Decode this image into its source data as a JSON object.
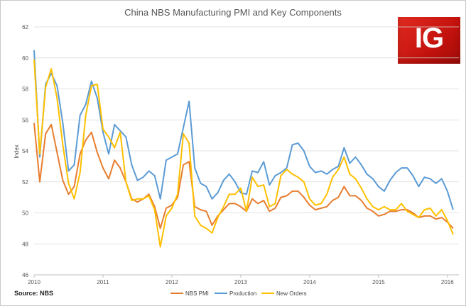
{
  "chart_data": {
    "type": "line",
    "title": "China NBS Manufacturing PMI and Key Components",
    "xlabel": "",
    "ylabel": "Index",
    "ylim": [
      46,
      62
    ],
    "yticks": [
      "46",
      "48",
      "50",
      "52",
      "54",
      "56",
      "58",
      "60",
      "62"
    ],
    "xlim": [
      2010.0,
      2016.167
    ],
    "xtick_labels": [
      "2010",
      "2011",
      "2012",
      "2013",
      "2014",
      "2015",
      "2016"
    ],
    "grid": "horizontal",
    "legend_position": "bottom",
    "source": "Source: NBS",
    "x": [
      2010.0,
      2010.083,
      2010.167,
      2010.25,
      2010.333,
      2010.417,
      2010.5,
      2010.583,
      2010.667,
      2010.75,
      2010.833,
      2010.917,
      2011.0,
      2011.083,
      2011.167,
      2011.25,
      2011.333,
      2011.417,
      2011.5,
      2011.583,
      2011.667,
      2011.75,
      2011.833,
      2011.917,
      2012.0,
      2012.083,
      2012.167,
      2012.25,
      2012.333,
      2012.417,
      2012.5,
      2012.583,
      2012.667,
      2012.75,
      2012.833,
      2012.917,
      2013.0,
      2013.083,
      2013.167,
      2013.25,
      2013.333,
      2013.417,
      2013.5,
      2013.583,
      2013.667,
      2013.75,
      2013.833,
      2013.917,
      2014.0,
      2014.083,
      2014.167,
      2014.25,
      2014.333,
      2014.417,
      2014.5,
      2014.583,
      2014.667,
      2014.75,
      2014.833,
      2014.917,
      2015.0,
      2015.083,
      2015.167,
      2015.25,
      2015.333,
      2015.417,
      2015.5,
      2015.583,
      2015.667,
      2015.75,
      2015.833,
      2015.917,
      2016.0,
      2016.083
    ],
    "series": [
      {
        "name": "NBS PMI",
        "color": "#e87d2f",
        "values": [
          55.8,
          52.0,
          55.1,
          55.7,
          53.9,
          52.1,
          51.2,
          51.7,
          53.8,
          54.7,
          55.2,
          53.9,
          52.9,
          52.2,
          53.4,
          52.9,
          52.0,
          50.9,
          50.7,
          50.9,
          51.2,
          50.4,
          49.0,
          50.3,
          50.5,
          51.0,
          53.1,
          53.3,
          50.4,
          50.2,
          50.1,
          49.2,
          49.8,
          50.2,
          50.6,
          50.6,
          50.4,
          50.1,
          50.9,
          50.6,
          50.8,
          50.1,
          50.3,
          51.0,
          51.1,
          51.4,
          51.4,
          51.0,
          50.5,
          50.2,
          50.3,
          50.4,
          50.8,
          51.0,
          51.7,
          51.1,
          51.1,
          50.8,
          50.3,
          50.1,
          49.8,
          49.9,
          50.1,
          50.1,
          50.2,
          50.2,
          50.0,
          49.7,
          49.8,
          49.8,
          49.6,
          49.7,
          49.4,
          49.0
        ]
      },
      {
        "name": "Production",
        "color": "#5b9bd5",
        "values": [
          60.5,
          53.6,
          58.3,
          59.0,
          58.2,
          55.8,
          52.7,
          53.1,
          56.3,
          57.0,
          58.5,
          57.4,
          55.2,
          53.8,
          55.7,
          55.3,
          54.9,
          53.1,
          52.1,
          52.3,
          52.7,
          52.4,
          50.9,
          53.4,
          53.6,
          53.8,
          55.5,
          57.2,
          52.9,
          51.9,
          51.7,
          50.9,
          51.3,
          52.1,
          52.5,
          52.0,
          51.3,
          51.2,
          52.7,
          52.6,
          53.3,
          51.8,
          52.4,
          52.6,
          52.9,
          54.4,
          54.5,
          54.0,
          53.0,
          52.6,
          52.7,
          52.5,
          52.8,
          53.0,
          54.2,
          53.2,
          53.6,
          53.1,
          52.5,
          52.2,
          51.7,
          51.4,
          52.1,
          52.6,
          52.9,
          52.9,
          52.4,
          51.7,
          52.3,
          52.2,
          51.9,
          52.2,
          51.4,
          50.2
        ]
      },
      {
        "name": "New Orders",
        "color": "#ffc000",
        "values": [
          59.9,
          53.8,
          58.1,
          59.3,
          57.4,
          54.4,
          51.9,
          50.9,
          52.6,
          56.3,
          58.2,
          58.3,
          55.4,
          54.9,
          54.2,
          55.2,
          52.0,
          50.8,
          50.9,
          50.9,
          51.1,
          50.2,
          47.8,
          49.8,
          50.3,
          51.2,
          55.1,
          54.5,
          49.8,
          49.2,
          49.0,
          48.7,
          49.7,
          50.4,
          51.2,
          51.2,
          51.6,
          50.1,
          52.3,
          51.7,
          51.8,
          50.4,
          50.6,
          52.4,
          52.8,
          52.5,
          52.3,
          52.0,
          50.9,
          50.5,
          50.6,
          51.2,
          52.3,
          52.8,
          53.6,
          52.5,
          52.2,
          51.6,
          50.9,
          50.4,
          50.2,
          50.4,
          50.2,
          50.2,
          50.6,
          50.1,
          49.9,
          49.7,
          50.2,
          50.3,
          49.8,
          50.2,
          49.5,
          48.6
        ]
      }
    ]
  },
  "logo": {
    "text": "IG"
  }
}
